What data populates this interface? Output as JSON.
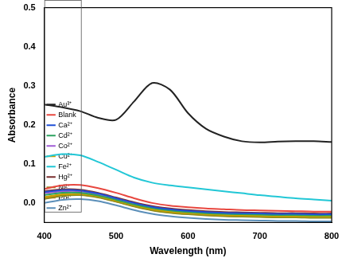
{
  "chart_data": {
    "type": "line",
    "x_label": "Wavelength (nm)",
    "y_label": "Absorbance",
    "x": [
      400,
      425,
      450,
      475,
      500,
      525,
      550,
      575,
      600,
      625,
      650,
      675,
      700,
      725,
      750,
      775,
      800
    ],
    "xlim": [
      400,
      800
    ],
    "xticks": [
      400,
      500,
      600,
      700,
      800
    ],
    "ylim": [
      -0.05,
      0.5
    ],
    "yticks": [
      {
        "value": 0,
        "label": "0.0"
      },
      {
        "value": 0.1,
        "label": "0.1"
      },
      {
        "value": 0.2,
        "label": "0.2"
      },
      {
        "value": 0.3,
        "label": "0.3"
      },
      {
        "value": 0.4,
        "label": "0.4"
      },
      {
        "value": 0.5,
        "label": "0.5"
      }
    ],
    "grid": false,
    "legend": "upper right",
    "series": [
      {
        "name": "Au³⁺",
        "color": "#222222",
        "values": [
          0.252,
          0.245,
          0.235,
          0.218,
          0.213,
          0.26,
          0.307,
          0.29,
          0.23,
          0.19,
          0.17,
          0.158,
          0.155,
          0.157,
          0.158,
          0.158,
          0.156
        ]
      },
      {
        "name": "Blank",
        "color": "#e8473f",
        "values": [
          0.036,
          0.045,
          0.046,
          0.038,
          0.026,
          0.012,
          0.0,
          -0.007,
          -0.011,
          -0.014,
          -0.016,
          -0.018,
          -0.019,
          -0.02,
          -0.021,
          -0.022,
          -0.022
        ]
      },
      {
        "name": "Ca²⁺",
        "color": "#1f4fd6",
        "values": [
          0.028,
          0.033,
          0.032,
          0.024,
          0.012,
          0.0,
          -0.01,
          -0.016,
          -0.02,
          -0.023,
          -0.025,
          -0.026,
          -0.027,
          -0.028,
          -0.028,
          -0.029,
          -0.029
        ]
      },
      {
        "name": "Cd²⁺",
        "color": "#2ca25f",
        "values": [
          0.02,
          0.026,
          0.026,
          0.019,
          0.008,
          -0.004,
          -0.013,
          -0.019,
          -0.023,
          -0.026,
          -0.028,
          -0.029,
          -0.03,
          -0.031,
          -0.031,
          -0.032,
          -0.032
        ]
      },
      {
        "name": "Co²⁺",
        "color": "#a05cd6",
        "values": [
          0.025,
          0.03,
          0.03,
          0.022,
          0.01,
          -0.002,
          -0.012,
          -0.018,
          -0.022,
          -0.025,
          -0.027,
          -0.028,
          -0.029,
          -0.03,
          -0.03,
          -0.031,
          -0.031
        ]
      },
      {
        "name": "Cu²⁺",
        "color": "#c8a200",
        "values": [
          0.015,
          0.022,
          0.023,
          0.017,
          0.006,
          -0.006,
          -0.016,
          -0.022,
          -0.026,
          -0.029,
          -0.031,
          -0.032,
          -0.033,
          -0.034,
          -0.034,
          -0.035,
          -0.035
        ]
      },
      {
        "name": "Fe²⁺",
        "color": "#22c7d6",
        "values": [
          0.118,
          0.125,
          0.122,
          0.105,
          0.085,
          0.065,
          0.052,
          0.045,
          0.04,
          0.035,
          0.03,
          0.025,
          0.02,
          0.016,
          0.012,
          0.009,
          0.006
        ]
      },
      {
        "name": "Hg²⁺",
        "color": "#7a2e2e",
        "values": [
          0.03,
          0.035,
          0.034,
          0.026,
          0.014,
          0.002,
          -0.008,
          -0.014,
          -0.018,
          -0.021,
          -0.023,
          -0.024,
          -0.025,
          -0.026,
          -0.026,
          -0.027,
          -0.027
        ]
      },
      {
        "name": "Ni²⁺",
        "color": "#8c8c1a",
        "values": [
          0.01,
          0.018,
          0.02,
          0.014,
          0.003,
          -0.009,
          -0.019,
          -0.025,
          -0.029,
          -0.032,
          -0.034,
          -0.035,
          -0.036,
          -0.037,
          -0.037,
          -0.038,
          -0.038
        ]
      },
      {
        "name": "Pb²⁺",
        "color": "#f07c1e",
        "values": [
          0.012,
          0.02,
          0.021,
          0.015,
          0.004,
          -0.008,
          -0.018,
          -0.024,
          -0.028,
          -0.031,
          -0.033,
          -0.034,
          -0.035,
          -0.036,
          -0.036,
          -0.037,
          -0.037
        ]
      },
      {
        "name": "Zn²⁺",
        "color": "#5b8fb9",
        "values": [
          0.0,
          0.008,
          0.01,
          0.005,
          -0.006,
          -0.018,
          -0.028,
          -0.034,
          -0.038,
          -0.041,
          -0.043,
          -0.044,
          -0.045,
          -0.046,
          -0.046,
          -0.047,
          -0.047
        ]
      }
    ]
  }
}
